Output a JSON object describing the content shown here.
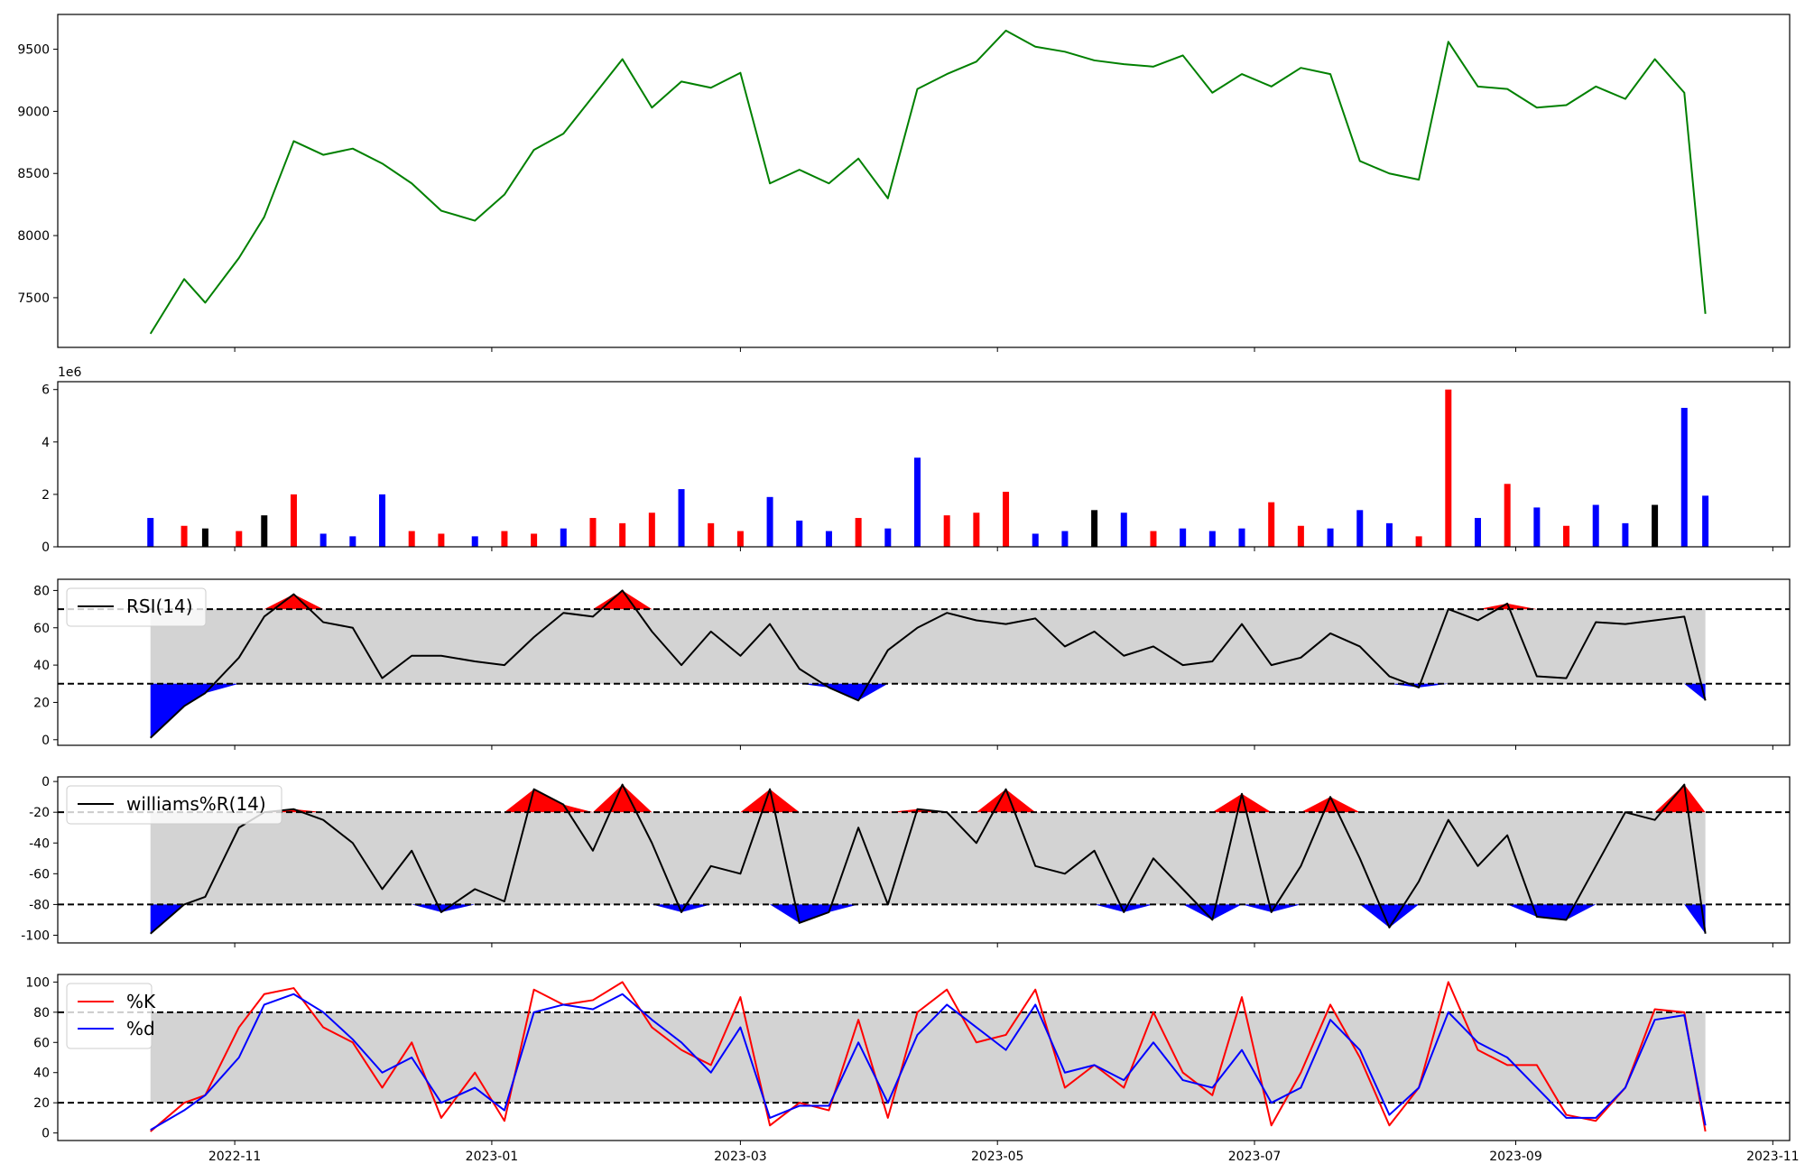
{
  "chart_data": [
    {
      "type": "line",
      "panel": "price",
      "title": "",
      "xlabel": "",
      "ylabel": "",
      "ylim": [
        7100,
        9780
      ],
      "yticks": [
        7500,
        8000,
        8500,
        9000,
        9500
      ],
      "grid": false,
      "line_color": "#008000",
      "x": [
        "2022-10-12",
        "2022-10-20",
        "2022-10-25",
        "2022-11-02",
        "2022-11-08",
        "2022-11-15",
        "2022-11-22",
        "2022-11-29",
        "2022-12-06",
        "2022-12-13",
        "2022-12-20",
        "2022-12-28",
        "2023-01-04",
        "2023-01-11",
        "2023-01-18",
        "2023-01-25",
        "2023-02-01",
        "2023-02-08",
        "2023-02-15",
        "2023-02-22",
        "2023-03-01",
        "2023-03-08",
        "2023-03-15",
        "2023-03-22",
        "2023-03-29",
        "2023-04-05",
        "2023-04-12",
        "2023-04-19",
        "2023-04-26",
        "2023-05-03",
        "2023-05-10",
        "2023-05-17",
        "2023-05-24",
        "2023-05-31",
        "2023-06-07",
        "2023-06-14",
        "2023-06-21",
        "2023-06-28",
        "2023-07-05",
        "2023-07-12",
        "2023-07-19",
        "2023-07-26",
        "2023-08-02",
        "2023-08-09",
        "2023-08-16",
        "2023-08-23",
        "2023-08-30",
        "2023-09-06",
        "2023-09-13",
        "2023-09-20",
        "2023-09-27",
        "2023-10-04",
        "2023-10-11",
        "2023-10-16"
      ],
      "series": [
        {
          "values": [
            7210,
            7650,
            7460,
            7820,
            8150,
            8760,
            8650,
            8700,
            8580,
            8420,
            8200,
            8120,
            8330,
            8690,
            8820,
            9120,
            9420,
            9030,
            9240,
            9190,
            9310,
            8420,
            8530,
            8420,
            8620,
            8300,
            9180,
            9300,
            9400,
            9650,
            9520,
            9480,
            9410,
            9380,
            9360,
            9450,
            9150,
            9300,
            9200,
            9350,
            9300,
            8600,
            8500,
            8450,
            9560,
            9200,
            9180,
            9030,
            9050,
            9200,
            9100,
            9420,
            9150,
            7370
          ]
        }
      ]
    },
    {
      "type": "bar",
      "panel": "volume",
      "title": "",
      "xlabel": "",
      "ylabel": "",
      "scale_label": "1e6",
      "ylim": [
        0,
        6.3
      ],
      "yticks": [
        0,
        2,
        4,
        6
      ],
      "colors": {
        "up": "#0000ff",
        "down": "#ff0000",
        "flat": "#000000"
      },
      "x": [
        "2022-10-12",
        "2022-10-20",
        "2022-10-25",
        "2022-11-02",
        "2022-11-08",
        "2022-11-15",
        "2022-11-22",
        "2022-11-29",
        "2022-12-06",
        "2022-12-13",
        "2022-12-20",
        "2022-12-28",
        "2023-01-04",
        "2023-01-11",
        "2023-01-18",
        "2023-01-25",
        "2023-02-01",
        "2023-02-08",
        "2023-02-15",
        "2023-02-22",
        "2023-03-01",
        "2023-03-08",
        "2023-03-15",
        "2023-03-22",
        "2023-03-29",
        "2023-04-05",
        "2023-04-12",
        "2023-04-19",
        "2023-04-26",
        "2023-05-03",
        "2023-05-10",
        "2023-05-17",
        "2023-05-24",
        "2023-05-31",
        "2023-06-07",
        "2023-06-14",
        "2023-06-21",
        "2023-06-28",
        "2023-07-05",
        "2023-07-12",
        "2023-07-19",
        "2023-07-26",
        "2023-08-02",
        "2023-08-09",
        "2023-08-16",
        "2023-08-23",
        "2023-08-30",
        "2023-09-06",
        "2023-09-13",
        "2023-09-20",
        "2023-09-27",
        "2023-10-04",
        "2023-10-11",
        "2023-10-16"
      ],
      "series": [
        {
          "values": [
            1.1,
            0.8,
            0.7,
            0.6,
            1.2,
            2.0,
            0.5,
            0.4,
            2.0,
            0.6,
            0.5,
            0.4,
            0.6,
            0.5,
            0.7,
            1.1,
            0.9,
            1.3,
            2.2,
            0.9,
            0.6,
            1.9,
            1.0,
            0.6,
            1.1,
            0.7,
            3.4,
            1.2,
            1.3,
            2.1,
            0.5,
            0.6,
            1.4,
            1.3,
            0.6,
            0.7,
            0.6,
            0.7,
            1.7,
            0.8,
            0.7,
            1.4,
            0.9,
            0.4,
            6.0,
            1.1,
            2.4,
            1.5,
            0.8,
            1.6,
            0.9,
            1.6,
            5.3,
            1.95
          ]
        }
      ],
      "bar_colors": [
        "up",
        "down",
        "flat",
        "down",
        "flat",
        "down",
        "up",
        "up",
        "up",
        "down",
        "down",
        "up",
        "down",
        "down",
        "up",
        "down",
        "down",
        "down",
        "up",
        "down",
        "down",
        "up",
        "up",
        "up",
        "down",
        "up",
        "up",
        "down",
        "down",
        "down",
        "up",
        "up",
        "flat",
        "up",
        "down",
        "up",
        "up",
        "up",
        "down",
        "down",
        "up",
        "up",
        "up",
        "down",
        "down",
        "up",
        "down",
        "up",
        "down",
        "up",
        "up",
        "flat",
        "up",
        "up"
      ]
    },
    {
      "type": "line",
      "panel": "rsi",
      "title": "",
      "legend": [
        "RSI(14)"
      ],
      "legend_placement": "upper-left",
      "ylim": [
        -3,
        86
      ],
      "yticks": [
        0,
        20,
        40,
        60,
        80
      ],
      "bands": {
        "upper": 70,
        "lower": 30
      },
      "x": [
        "2022-10-12",
        "2022-10-20",
        "2022-10-25",
        "2022-11-02",
        "2022-11-08",
        "2022-11-15",
        "2022-11-22",
        "2022-11-29",
        "2022-12-06",
        "2022-12-13",
        "2022-12-20",
        "2022-12-28",
        "2023-01-04",
        "2023-01-11",
        "2023-01-18",
        "2023-01-25",
        "2023-02-01",
        "2023-02-08",
        "2023-02-15",
        "2023-02-22",
        "2023-03-01",
        "2023-03-08",
        "2023-03-15",
        "2023-03-22",
        "2023-03-29",
        "2023-04-05",
        "2023-04-12",
        "2023-04-19",
        "2023-04-26",
        "2023-05-03",
        "2023-05-10",
        "2023-05-17",
        "2023-05-24",
        "2023-05-31",
        "2023-06-07",
        "2023-06-14",
        "2023-06-21",
        "2023-06-28",
        "2023-07-05",
        "2023-07-12",
        "2023-07-19",
        "2023-07-26",
        "2023-08-02",
        "2023-08-09",
        "2023-08-16",
        "2023-08-23",
        "2023-08-30",
        "2023-09-06",
        "2023-09-13",
        "2023-09-20",
        "2023-09-27",
        "2023-10-04",
        "2023-10-11",
        "2023-10-16"
      ],
      "series": [
        {
          "name": "RSI(14)",
          "values": [
            1,
            18,
            25,
            44,
            66,
            78,
            63,
            60,
            33,
            45,
            45,
            42,
            40,
            55,
            68,
            66,
            80,
            58,
            40,
            58,
            45,
            62,
            38,
            28,
            21,
            48,
            60,
            68,
            64,
            62,
            65,
            50,
            58,
            45,
            50,
            40,
            42,
            62,
            40,
            44,
            57,
            50,
            34,
            28,
            70,
            64,
            73,
            34,
            33,
            63,
            62,
            64,
            66,
            21
          ]
        }
      ]
    },
    {
      "type": "line",
      "panel": "williams",
      "title": "",
      "legend": [
        "williams%R(14)"
      ],
      "legend_placement": "upper-left",
      "ylim": [
        -105,
        3
      ],
      "yticks": [
        0,
        -20,
        -40,
        -60,
        -80,
        -100
      ],
      "bands": {
        "upper": -20,
        "lower": -80
      },
      "x": [
        "2022-10-12",
        "2022-10-20",
        "2022-10-25",
        "2022-11-02",
        "2022-11-08",
        "2022-11-15",
        "2022-11-22",
        "2022-11-29",
        "2022-12-06",
        "2022-12-13",
        "2022-12-20",
        "2022-12-28",
        "2023-01-04",
        "2023-01-11",
        "2023-01-18",
        "2023-01-25",
        "2023-02-01",
        "2023-02-08",
        "2023-02-15",
        "2023-02-22",
        "2023-03-01",
        "2023-03-08",
        "2023-03-15",
        "2023-03-22",
        "2023-03-29",
        "2023-04-05",
        "2023-04-12",
        "2023-04-19",
        "2023-04-26",
        "2023-05-03",
        "2023-05-10",
        "2023-05-17",
        "2023-05-24",
        "2023-05-31",
        "2023-06-07",
        "2023-06-14",
        "2023-06-21",
        "2023-06-28",
        "2023-07-05",
        "2023-07-12",
        "2023-07-19",
        "2023-07-26",
        "2023-08-02",
        "2023-08-09",
        "2023-08-16",
        "2023-08-23",
        "2023-08-30",
        "2023-09-06",
        "2023-09-13",
        "2023-09-20",
        "2023-09-27",
        "2023-10-04",
        "2023-10-11",
        "2023-10-16"
      ],
      "series": [
        {
          "name": "williams%R(14)",
          "values": [
            -99,
            -80,
            -75,
            -30,
            -20,
            -18,
            -25,
            -40,
            -70,
            -45,
            -85,
            -70,
            -78,
            -5,
            -15,
            -45,
            -2,
            -40,
            -85,
            -55,
            -60,
            -5,
            -92,
            -85,
            -30,
            -80,
            -18,
            -20,
            -40,
            -5,
            -55,
            -60,
            -45,
            -85,
            -50,
            -70,
            -90,
            -8,
            -85,
            -55,
            -10,
            -50,
            -95,
            -65,
            -25,
            -55,
            -35,
            -88,
            -90,
            -55,
            -20,
            -25,
            -2,
            -99
          ]
        }
      ]
    },
    {
      "type": "line",
      "panel": "stochastic",
      "title": "",
      "legend": [
        "%K",
        "%d"
      ],
      "legend_placement": "upper-left",
      "ylim": [
        -5,
        105
      ],
      "yticks": [
        0,
        20,
        40,
        60,
        80,
        100
      ],
      "bands": {
        "upper": 80,
        "lower": 20
      },
      "colors": {
        "%K": "#ff0000",
        "%d": "#0000ff"
      },
      "x": [
        "2022-10-12",
        "2022-10-20",
        "2022-10-25",
        "2022-11-02",
        "2022-11-08",
        "2022-11-15",
        "2022-11-22",
        "2022-11-29",
        "2022-12-06",
        "2022-12-13",
        "2022-12-20",
        "2022-12-28",
        "2023-01-04",
        "2023-01-11",
        "2023-01-18",
        "2023-01-25",
        "2023-02-01",
        "2023-02-08",
        "2023-02-15",
        "2023-02-22",
        "2023-03-01",
        "2023-03-08",
        "2023-03-15",
        "2023-03-22",
        "2023-03-29",
        "2023-04-05",
        "2023-04-12",
        "2023-04-19",
        "2023-04-26",
        "2023-05-03",
        "2023-05-10",
        "2023-05-17",
        "2023-05-24",
        "2023-05-31",
        "2023-06-07",
        "2023-06-14",
        "2023-06-21",
        "2023-06-28",
        "2023-07-05",
        "2023-07-12",
        "2023-07-19",
        "2023-07-26",
        "2023-08-02",
        "2023-08-09",
        "2023-08-16",
        "2023-08-23",
        "2023-08-30",
        "2023-09-06",
        "2023-09-13",
        "2023-09-20",
        "2023-09-27",
        "2023-10-04",
        "2023-10-11",
        "2023-10-16"
      ],
      "series": [
        {
          "name": "%K",
          "values": [
            1,
            20,
            25,
            70,
            92,
            96,
            70,
            60,
            30,
            60,
            10,
            40,
            8,
            95,
            85,
            88,
            100,
            70,
            55,
            45,
            90,
            5,
            20,
            15,
            75,
            10,
            80,
            95,
            60,
            65,
            95,
            30,
            45,
            30,
            80,
            40,
            25,
            90,
            5,
            40,
            85,
            50,
            5,
            30,
            100,
            55,
            45,
            45,
            12,
            8,
            30,
            82,
            80,
            1
          ]
        },
        {
          "name": "%d",
          "values": [
            2,
            15,
            25,
            50,
            85,
            92,
            80,
            62,
            40,
            50,
            20,
            30,
            15,
            80,
            85,
            82,
            92,
            75,
            60,
            40,
            70,
            10,
            18,
            18,
            60,
            20,
            65,
            85,
            70,
            55,
            85,
            40,
            45,
            35,
            60,
            35,
            30,
            55,
            20,
            30,
            75,
            55,
            12,
            30,
            80,
            60,
            50,
            30,
            10,
            10,
            30,
            75,
            78,
            5
          ]
        }
      ]
    }
  ],
  "shared_x_axis": {
    "xlim": [
      "2022-09-20",
      "2023-11-05"
    ],
    "tick_labels": [
      {
        "date": "2022-11-01",
        "label": "2022-11"
      },
      {
        "date": "2023-01-01",
        "label": "2023-01"
      },
      {
        "date": "2023-03-01",
        "label": "2023-03"
      },
      {
        "date": "2023-05-01",
        "label": "2023-05"
      },
      {
        "date": "2023-07-01",
        "label": "2023-07"
      },
      {
        "date": "2023-09-01",
        "label": "2023-09"
      },
      {
        "date": "2023-11-01",
        "label": "2023-11"
      }
    ]
  },
  "style": {
    "band_fill": "#d3d3d3",
    "overbought_fill": "#ff0000",
    "oversold_fill": "#0000ff",
    "axis_color": "#000000"
  }
}
